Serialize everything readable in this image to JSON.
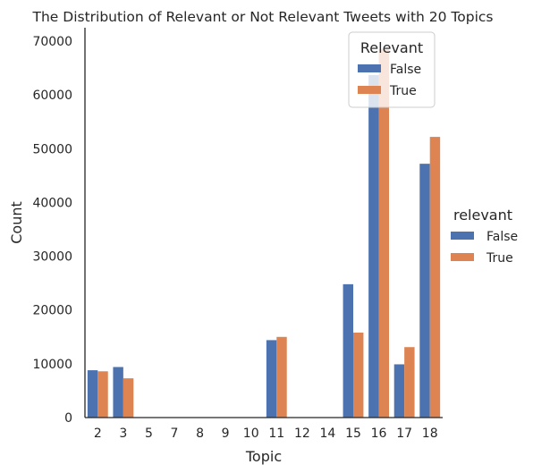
{
  "chart_data": {
    "type": "bar",
    "title": "The Distribution of Relevant or Not Relevant Tweets with 20 Topics",
    "xlabel": "Topic",
    "ylabel": "Count",
    "categories": [
      "2",
      "3",
      "5",
      "7",
      "8",
      "9",
      "10",
      "11",
      "12",
      "14",
      "15",
      "16",
      "17",
      "18"
    ],
    "yticks": [
      "0",
      "10000",
      "20000",
      "30000",
      "40000",
      "50000",
      "60000",
      "70000"
    ],
    "ylim": [
      0,
      72500
    ],
    "grid": false,
    "series": [
      {
        "name": "False",
        "color": "#4c72b0",
        "values": [
          8800,
          9400,
          0,
          0,
          0,
          0,
          0,
          14400,
          0,
          0,
          24800,
          63700,
          9900,
          47200
        ]
      },
      {
        "name": "True",
        "color": "#dd8452",
        "values": [
          8600,
          7300,
          0,
          0,
          0,
          0,
          0,
          15000,
          0,
          0,
          15800,
          68500,
          13100,
          52200
        ]
      }
    ],
    "legend_inner": {
      "title": "Relevant",
      "placement": "top-right",
      "labels": [
        "False",
        "True"
      ]
    },
    "legend_outer": {
      "title": "relevant",
      "placement": "right",
      "labels": [
        "False",
        "True"
      ]
    }
  }
}
